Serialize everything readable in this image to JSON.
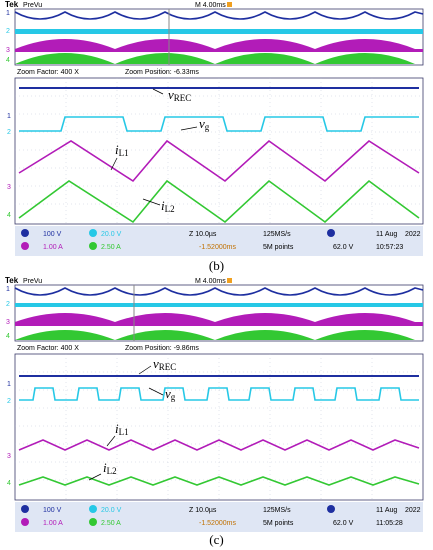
{
  "colors": {
    "ch1": "#1e2fa0",
    "ch2": "#26c8e6",
    "ch3": "#b21cb8",
    "ch4": "#33c833",
    "grid": "#9aa3b8",
    "readout_bg": "#dfe6f4",
    "trigger": "#f0a020"
  },
  "panels": [
    {
      "caption": "(b)",
      "header": {
        "brand": "Tek",
        "mode": "PreVu",
        "timebase": "M 4.00ms"
      },
      "zoom": {
        "factor": "Zoom Factor: 400 X",
        "position": "Zoom Position: -6.33ms"
      },
      "annotations": {
        "vrec": "v",
        "vrec_sub": "REC",
        "vg": "v",
        "vg_sub": "g",
        "il1": "i",
        "il1_sub": "L1",
        "il2": "i",
        "il2_sub": "L2"
      },
      "readouts": {
        "ch1": "100 V",
        "ch2": "20.0 V",
        "ch3": "1.00 A",
        "ch4": "2.50 A",
        "timescale": "Z 10.0µs",
        "delay": "-1.52000ms",
        "rate": "125MS/s",
        "points": "5M points",
        "trig_level": "62.0 V",
        "date": "11 Aug",
        "year": "2022",
        "time": "10:57:23"
      }
    },
    {
      "caption": "(c)",
      "header": {
        "brand": "Tek",
        "mode": "PreVu",
        "timebase": "M 4.00ms"
      },
      "zoom": {
        "factor": "Zoom Factor: 400 X",
        "position": "Zoom Position: -9.86ms"
      },
      "annotations": {
        "vrec": "v",
        "vrec_sub": "REC",
        "vg": "v",
        "vg_sub": "g",
        "il1": "i",
        "il1_sub": "L1",
        "il2": "i",
        "il2_sub": "L2"
      },
      "readouts": {
        "ch1": "100 V",
        "ch2": "20.0 V",
        "ch3": "1.00 A",
        "ch4": "2.50 A",
        "timescale": "Z 10.0µs",
        "delay": "-1.52000ms",
        "rate": "125MS/s",
        "points": "5M points",
        "trig_level": "62.0 V",
        "date": "11 Aug",
        "year": "2022",
        "time": "11:05:28"
      }
    }
  ]
}
